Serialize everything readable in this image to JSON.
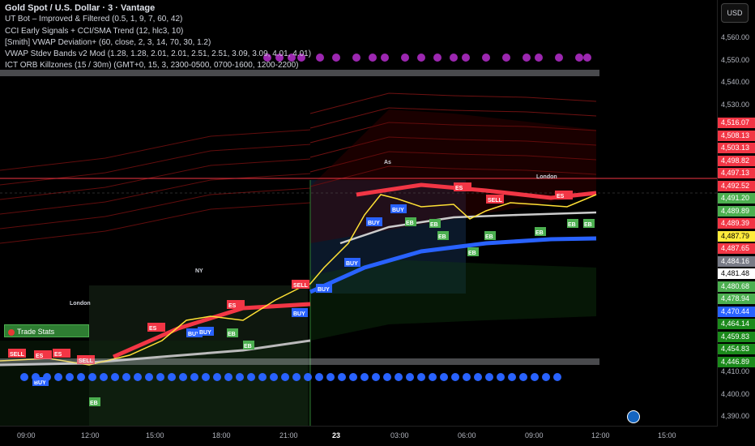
{
  "symbol": {
    "title": "Gold Spot / U.S. Dollar · 3 · Vantage"
  },
  "indicators": [
    "UT Bot – Improved & Filtered (0.5, 1, 9, 7, 60, 42)",
    "CCI Early Signals + CCI/SMA Trend (12, hlc3, 10)",
    "[Smith] VWAP Deviation+ (60, close, 2, 3, 14, 70, 30, 1.2)",
    "VWAP Stdev Bands v2 Mod (1.28, 1.28, 2.01, 2.01, 2.51, 2.51, 3.09, 3.09, 4.01, 4.01)",
    "ICT ORB Killzones (15 / 30m) (GMT+0, 15, 3, 2300-0500, 0700-1600, 1200-2200)"
  ],
  "currency_button": "USD",
  "trade_stats_label": "Trade Stats",
  "price_axis": {
    "ticks": [
      "4,560.00",
      "4,550.00",
      "4,540.00",
      "4,530.00",
      "4,420.00",
      "4,410.00",
      "4,400.00",
      "4,390.00"
    ],
    "tags": [
      {
        "text": "4,516.07",
        "color": "#f23645"
      },
      {
        "text": "4,508.13",
        "color": "#f23645"
      },
      {
        "text": "4,503.13",
        "color": "#f23645"
      },
      {
        "text": "4,498.82",
        "color": "#f23645"
      },
      {
        "text": "4,497.13",
        "color": "#f23645"
      },
      {
        "text": "4,492.52",
        "color": "#f23645"
      },
      {
        "text": "4,491.20",
        "color": "#4caf50"
      },
      {
        "text": "4,489.89",
        "color": "#4caf50"
      },
      {
        "text": "4,489.39",
        "color": "#f23645"
      },
      {
        "text": "4,487.79",
        "color": "#ffeb3b"
      },
      {
        "text": "4,487.65",
        "color": "#f23645"
      },
      {
        "text": "4,484.16",
        "color": "#787b86"
      },
      {
        "text": "4,481.48",
        "color": "#ffffff"
      },
      {
        "text": "4,480.68",
        "color": "#4caf50"
      },
      {
        "text": "4,478.94",
        "color": "#4caf50"
      },
      {
        "text": "4,470.44",
        "color": "#2962ff"
      },
      {
        "text": "4,464.14",
        "color": "#1b8a1b"
      },
      {
        "text": "4,459.83",
        "color": "#1b8a1b"
      },
      {
        "text": "4,454.83",
        "color": "#1b8a1b"
      },
      {
        "text": "4,446.89",
        "color": "#1b8a1b"
      }
    ]
  },
  "time_axis": {
    "ticks": [
      "09:00",
      "12:00",
      "15:00",
      "18:00",
      "21:00",
      "23",
      "03:00",
      "06:00",
      "09:00",
      "12:00",
      "15:00"
    ]
  },
  "session_labels": [
    "London",
    "NY",
    "London",
    "Asia"
  ],
  "signal_labels": {
    "buy": "BUY",
    "sell": "SELL",
    "es": "ES",
    "eb": "EB"
  },
  "colors": {
    "background": "#000000",
    "bull": "#4caf50",
    "bear": "#f23645",
    "vwap": "#2962ff",
    "price_line": "#f23645"
  }
}
